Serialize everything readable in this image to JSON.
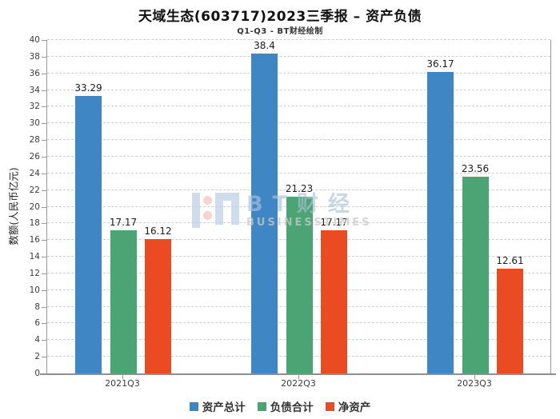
{
  "title": "天域生态(603717)2023三季报 – 资产负债",
  "subtitle": "Q1-Q3 - BT财经绘制",
  "watermark": {
    "cn": "BT财经",
    "en": "BUSINESSTIMES"
  },
  "colors": {
    "assets": "#3f86c5",
    "liabilities": "#4aa473",
    "net_assets": "#ea4b23"
  },
  "chart_data": {
    "type": "bar",
    "title": "天域生态(603717)2023三季报 – 资产负债",
    "subtitle": "Q1-Q3 - BT财经绘制",
    "categories": [
      "2021Q3",
      "2022Q3",
      "2023Q3"
    ],
    "series": [
      {
        "name": "资产总计",
        "key": "total-assets",
        "color": "#3f86c5",
        "values": [
          33.29,
          38.4,
          36.17
        ]
      },
      {
        "name": "负债合计",
        "key": "total-liabilities",
        "color": "#4aa473",
        "values": [
          17.17,
          21.23,
          23.56
        ]
      },
      {
        "name": "净资产",
        "key": "net-assets",
        "color": "#ea4b23",
        "values": [
          16.12,
          17.17,
          12.61
        ]
      }
    ],
    "xlabel": "",
    "ylabel": "数额(人民币亿元)",
    "ylim": [
      0,
      40
    ],
    "ytick_step": 2,
    "grid": true,
    "legend_position": "bottom",
    "value_labels": true
  }
}
